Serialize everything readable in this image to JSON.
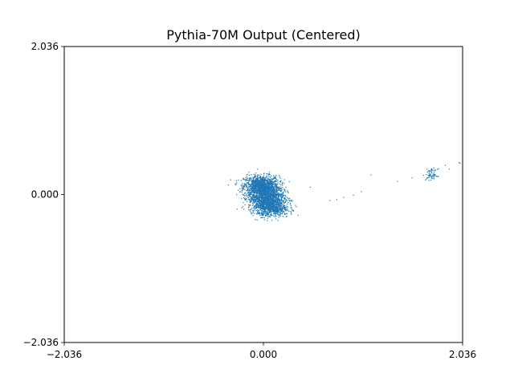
{
  "chart_data": {
    "type": "scatter",
    "title": "Pythia-70M Output (Centered)",
    "xlabel": "",
    "ylabel": "",
    "xlim": [
      -2.036,
      2.036
    ],
    "ylim": [
      -2.036,
      2.036
    ],
    "xticks": [
      {
        "value": -2.036,
        "label": "−2.036"
      },
      {
        "value": 0.0,
        "label": "0.000"
      },
      {
        "value": 2.036,
        "label": "2.036"
      }
    ],
    "yticks": [
      {
        "value": -2.036,
        "label": "−2.036"
      },
      {
        "value": 0.0,
        "label": "0.000"
      },
      {
        "value": 2.036,
        "label": "2.036"
      }
    ],
    "grid": false,
    "color": "#1f77b4",
    "clusters": [
      {
        "cx": -0.02,
        "cy": 0.12,
        "sx": 0.09,
        "sy": 0.07,
        "n": 1100
      },
      {
        "cx": 0.03,
        "cy": -0.05,
        "sx": 0.09,
        "sy": 0.1,
        "n": 1500
      },
      {
        "cx": 0.1,
        "cy": -0.2,
        "sx": 0.08,
        "sy": 0.05,
        "n": 450
      },
      {
        "cx": 1.72,
        "cy": 0.27,
        "sx": 0.03,
        "sy": 0.04,
        "n": 70
      }
    ],
    "outliers": [
      {
        "x": 0.48,
        "y": 0.1
      },
      {
        "x": 0.68,
        "y": -0.08
      },
      {
        "x": 0.75,
        "y": -0.07
      },
      {
        "x": 0.82,
        "y": -0.04
      },
      {
        "x": 0.92,
        "y": -0.01
      },
      {
        "x": 1.0,
        "y": 0.04
      },
      {
        "x": 1.1,
        "y": 0.27
      },
      {
        "x": 1.37,
        "y": 0.18
      },
      {
        "x": 1.52,
        "y": 0.23
      },
      {
        "x": 1.9,
        "y": 0.35
      },
      {
        "x": 1.86,
        "y": 0.4
      },
      {
        "x": 2.0,
        "y": 0.44
      },
      {
        "x": 2.01,
        "y": 0.43
      },
      {
        "x": 0.3,
        "y": -0.22
      },
      {
        "x": 0.2,
        "y": -0.3
      }
    ]
  }
}
